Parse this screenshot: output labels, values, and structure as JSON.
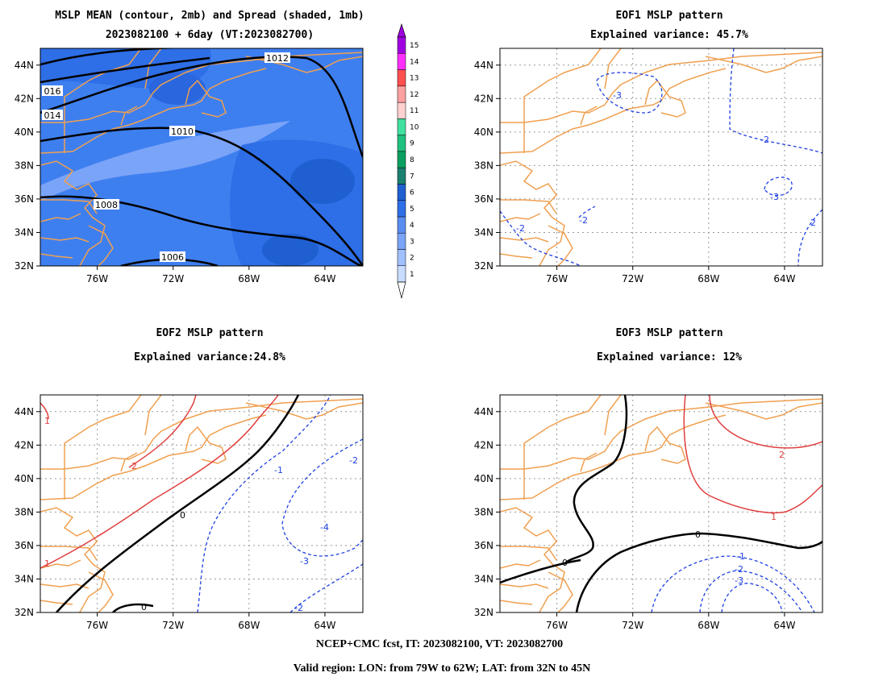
{
  "footer": {
    "line1": "NCEP+CMC fcst, IT: 2023082100, VT: 2023082700",
    "line2": "Valid region: LON: from 79W to 62W; LAT: from 32N to 45N"
  },
  "axes": {
    "lat_labels": [
      "44N",
      "42N",
      "40N",
      "38N",
      "36N",
      "34N",
      "32N"
    ],
    "lat_values": [
      44,
      42,
      40,
      38,
      36,
      34,
      32
    ],
    "lon_labels": [
      "76W",
      "72W",
      "68W",
      "64W"
    ],
    "lon_values": [
      -76,
      -72,
      -68,
      -64
    ],
    "lon_range": [
      -79,
      -62
    ],
    "lat_range": [
      32,
      45
    ]
  },
  "colorbar": {
    "labels": [
      "1",
      "2",
      "3",
      "4",
      "5",
      "6",
      "7",
      "8",
      "9",
      "10",
      "11",
      "12",
      "13",
      "14",
      "15"
    ],
    "colors": [
      "#c8dcff",
      "#a0c0ff",
      "#7aa4f8",
      "#5a8cf0",
      "#2e6ee6",
      "#1f5fd0",
      "#1a8070",
      "#0ca060",
      "#20c080",
      "#40e0a0",
      "#ffd0d0",
      "#ffa0a0",
      "#ff5050",
      "#ff30ff",
      "#a000e0"
    ]
  },
  "panels": {
    "mean": {
      "title1": "MSLP MEAN (contour, 2mb) and Spread (shaded, 1mb)",
      "title2": "2023082100 + 6day (VT:2023082700)",
      "contour_labels": [
        "1012",
        "016",
        "014",
        "1010",
        "1008",
        "1006"
      ]
    },
    "eof1": {
      "title1": "EOF1 MSLP pattern",
      "title2": "Explained variance: 45.7%",
      "contour_labels": [
        "-3",
        "-2",
        "-3",
        "-2",
        "-2",
        "2"
      ]
    },
    "eof2": {
      "title1": "EOF2 MSLP pattern",
      "title2": "Explained variance:24.8%",
      "contour_labels": [
        "1",
        "2",
        "1",
        "0",
        "0",
        "-1",
        "-2",
        "-4",
        "-3",
        "-2"
      ]
    },
    "eof3": {
      "title1": "EOF3 MSLP pattern",
      "title2": "Explained variance: 12%",
      "contour_labels": [
        "2",
        "1",
        "0",
        "0",
        "-1",
        "-2",
        "-3"
      ]
    }
  },
  "colors": {
    "coast": "#f0a050",
    "positive": "#e04040",
    "negative": "#2040e0",
    "zero": "#000000",
    "grid": "#999999"
  }
}
